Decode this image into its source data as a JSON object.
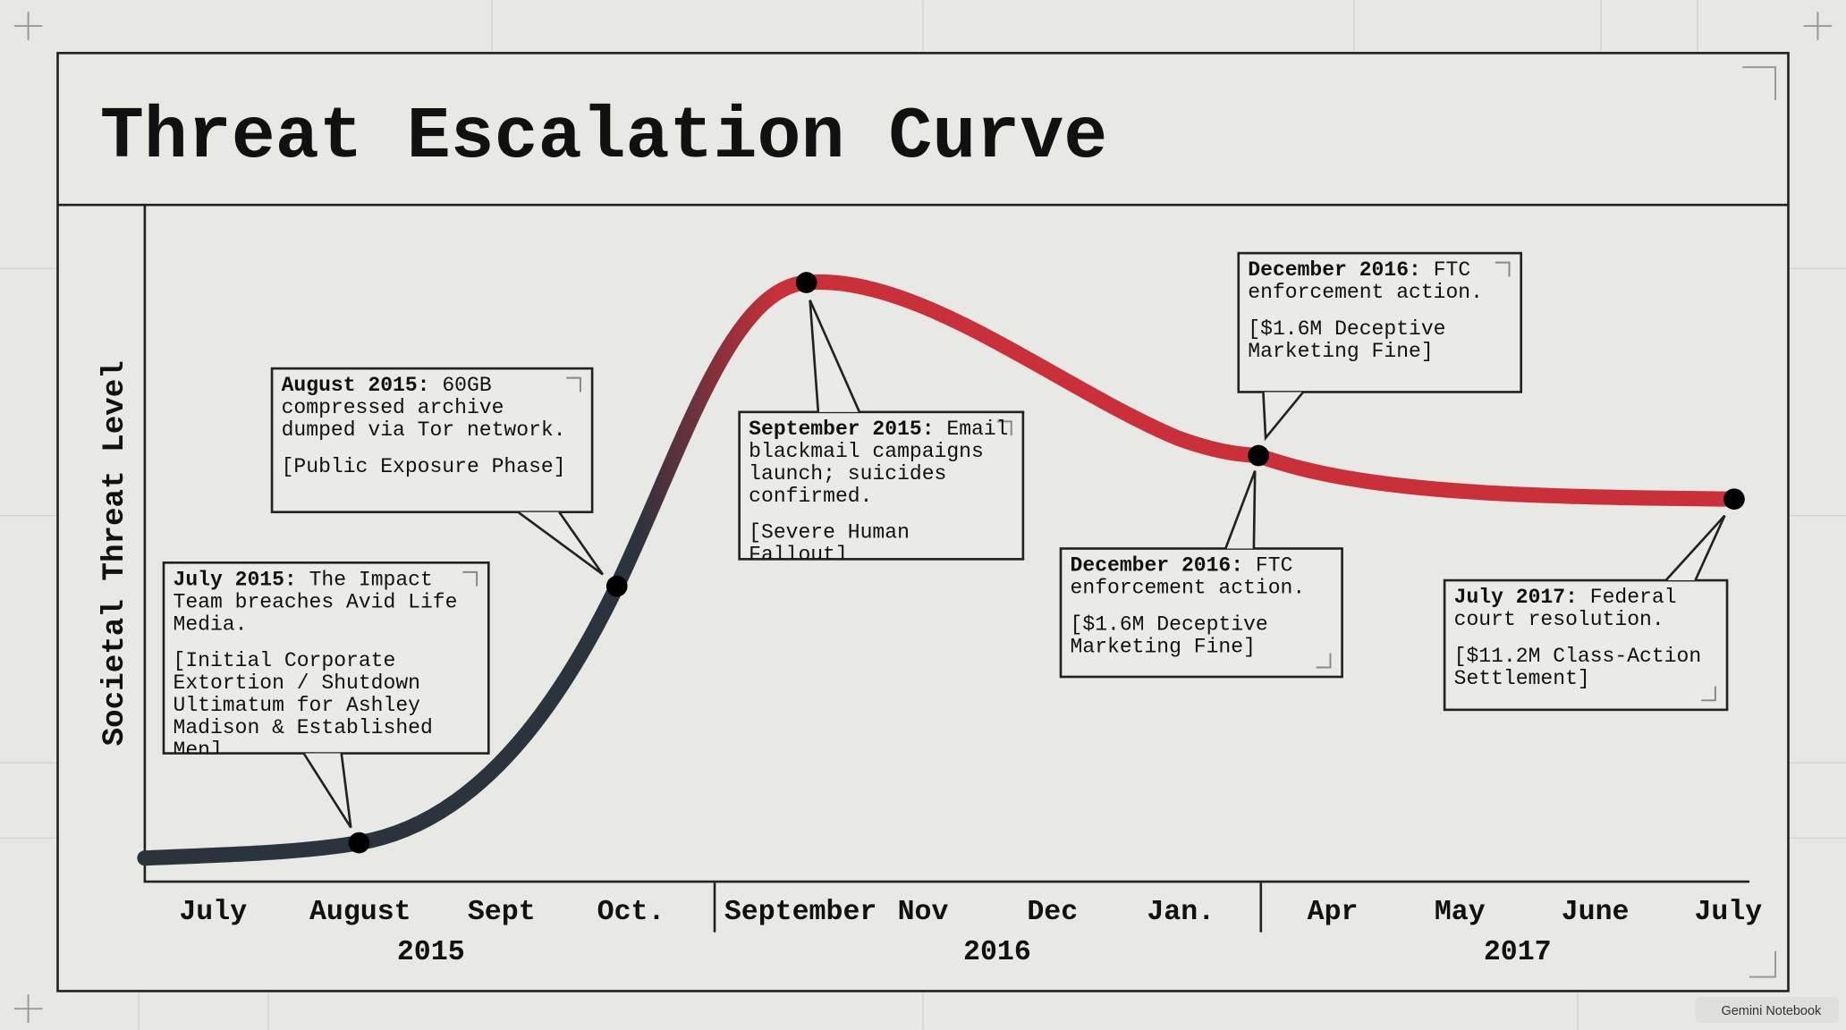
{
  "title": "Threat Escalation Curve",
  "y_axis_label": "Societal Threat Level",
  "x_axis": {
    "months": [
      "July",
      "August",
      "Sept",
      "Oct.",
      "September",
      "Nov",
      "Dec",
      "Jan.",
      "Apr",
      "May",
      "June",
      "July"
    ],
    "years": [
      "2015",
      "2016",
      "2017"
    ]
  },
  "events": [
    {
      "date": "July 2015:",
      "text": "The Impact Team breaches Avid Life Media.",
      "tag": "[Initial Corporate Extortion / Shutdown Ultimatum for Ashley Madison & Established Men]"
    },
    {
      "date": "August 2015:",
      "text": "60GB compressed archive dumped via Tor network.",
      "tag": "[Public Exposure Phase]"
    },
    {
      "date": "September 2015:",
      "text": "Email blackmail campaigns launch; suicides confirmed.",
      "tag": "[Severe Human Fallout]"
    },
    {
      "date": "December 2016:",
      "text": "FTC enforcement action.",
      "tag": "[$1.6M Deceptive Marketing Fine]"
    },
    {
      "date": "December 2016:",
      "text": "FTC enforcement action.",
      "tag": "[$1.6M Deceptive Marketing Fine]"
    },
    {
      "date": "July 2017:",
      "text": "Federal court resolution.",
      "tag": "[$11.2M Class-Action Settlement]"
    }
  ],
  "watermark": "Gemini Notebook"
}
